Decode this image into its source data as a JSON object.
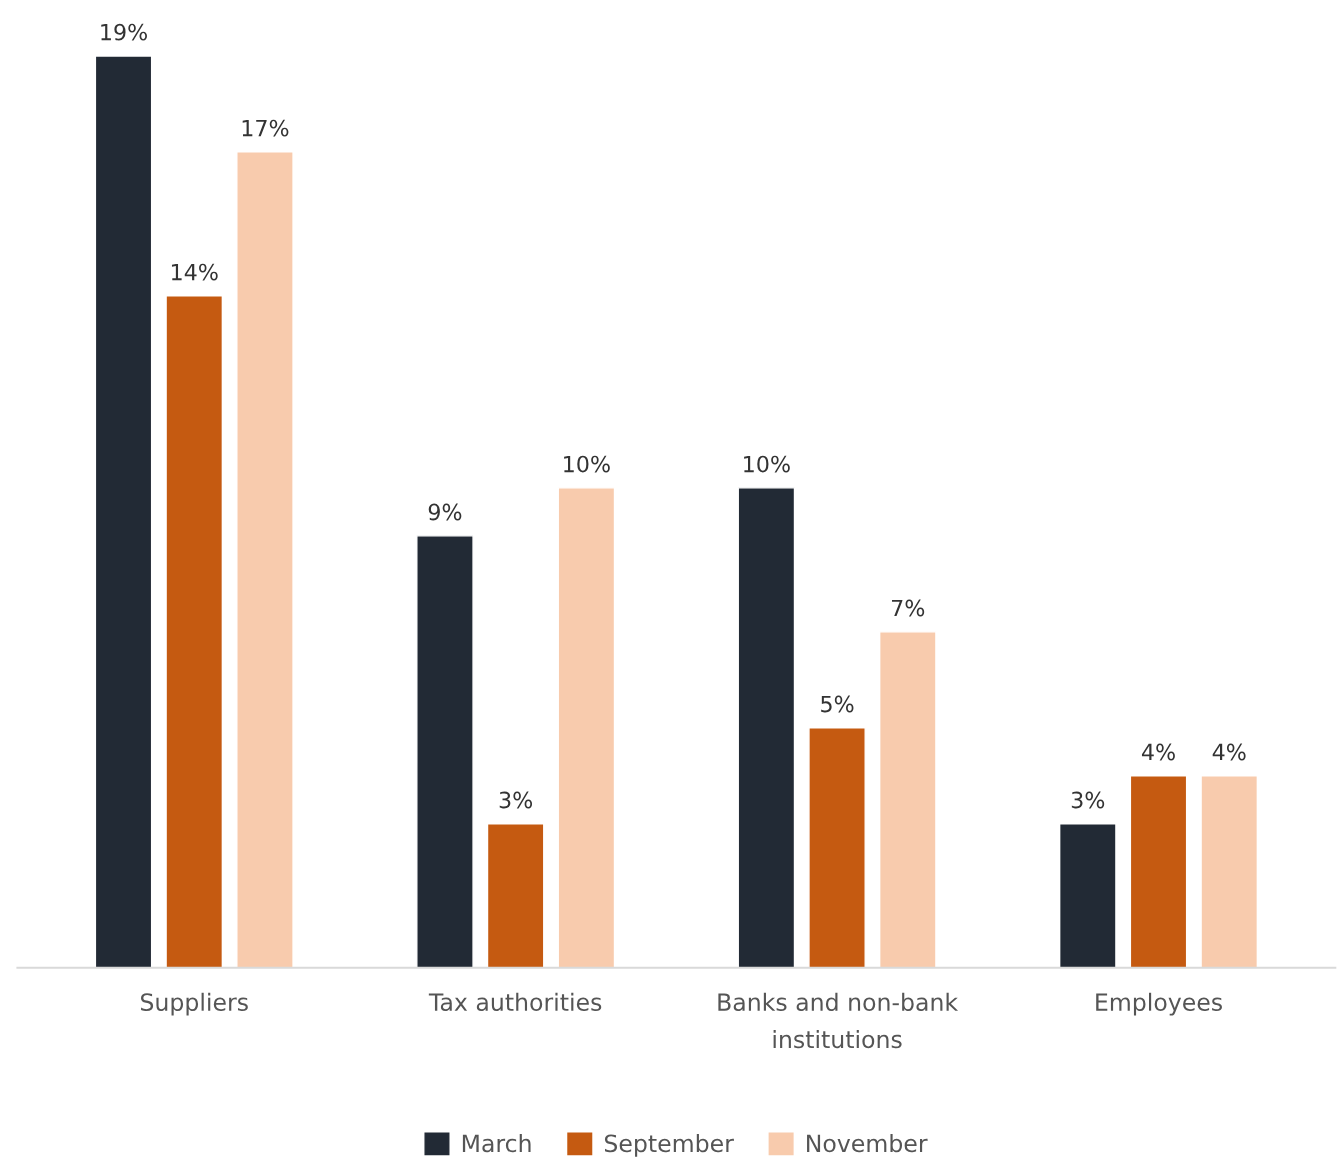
{
  "chart_data": {
    "type": "bar",
    "categories": [
      "Suppliers",
      "Tax authorities",
      "Banks and non-bank\ninstitutions",
      "Employees"
    ],
    "series": [
      {
        "name": "March",
        "color": "#222a35",
        "values": [
          19,
          9,
          10,
          3
        ],
        "value_labels": [
          "19%",
          "9%",
          "10%",
          "3%"
        ]
      },
      {
        "name": "September",
        "color": "#c55a11",
        "values": [
          14,
          3,
          5,
          4
        ],
        "value_labels": [
          "14%",
          "3%",
          "5%",
          "4%"
        ]
      },
      {
        "name": "November",
        "color": "#f8cbad",
        "values": [
          17,
          10,
          7,
          4
        ],
        "value_labels": [
          "17%",
          "10%",
          "7%",
          "4%"
        ]
      }
    ],
    "grid": false,
    "legend": "bottom"
  }
}
